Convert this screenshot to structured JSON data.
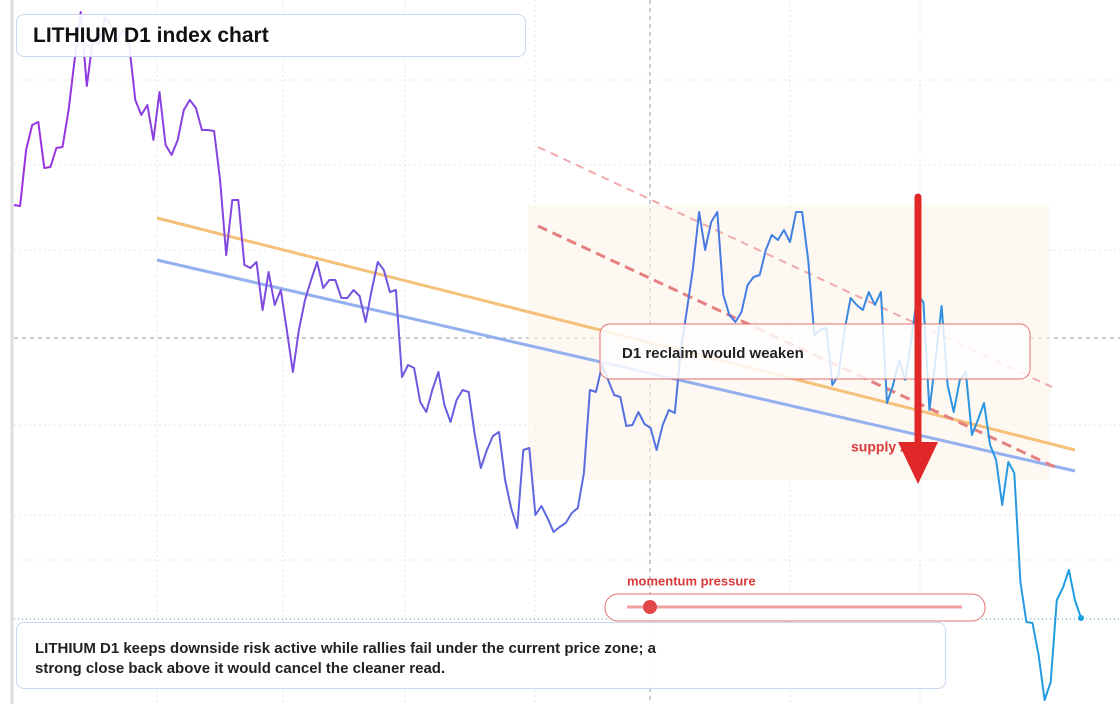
{
  "chart_data": {
    "type": "line",
    "title": "LITHIUM D1 index chart",
    "annotations": {
      "zone_note": "D1 reclaim would weaken",
      "zone_label": "supply zone",
      "meter_label": "momentum pressure",
      "summary": "LITHIUM D1 keeps downside risk active while rallies fail under the current price zone; a strong close back above it would cancel the cleaner read."
    },
    "color": "#9b30e0",
    "color_end": "#1ea0e0",
    "ylim": [
      0,
      704
    ],
    "values": [
      499,
      498,
      554,
      579,
      582,
      536,
      537,
      556,
      557,
      594,
      644,
      692,
      618,
      664,
      659,
      686,
      679,
      664,
      674,
      659,
      604,
      589,
      599,
      564,
      612,
      559,
      549,
      564,
      594,
      604,
      596,
      574,
      574,
      573,
      524,
      449,
      504,
      504,
      439,
      436,
      442,
      394,
      432,
      399,
      414,
      374,
      332,
      374,
      404,
      424,
      442,
      416,
      424,
      424,
      406,
      406,
      414,
      408,
      382,
      414,
      442,
      434,
      412,
      414,
      327,
      339,
      336,
      302,
      292,
      314,
      332,
      299,
      282,
      304,
      314,
      312,
      269,
      236,
      254,
      268,
      272,
      224,
      196,
      176,
      254,
      256,
      189,
      198,
      186,
      172,
      177,
      181,
      191,
      196,
      231,
      314,
      312,
      339,
      324,
      309,
      307,
      278,
      279,
      292,
      280,
      276,
      254,
      279,
      294,
      291,
      354,
      394,
      436,
      492,
      454,
      482,
      492,
      409,
      389,
      382,
      392,
      419,
      427,
      429,
      454,
      469,
      464,
      474,
      462,
      492,
      492,
      444,
      369,
      374,
      376,
      319,
      329,
      374,
      406,
      399,
      394,
      412,
      399,
      412,
      301,
      319,
      344,
      324,
      364,
      409,
      402,
      294,
      344,
      398,
      319,
      292,
      324,
      332,
      269,
      284,
      301,
      259,
      244,
      199,
      242,
      231,
      122,
      82,
      81,
      49,
      4,
      22,
      104,
      116,
      134,
      104,
      86
    ]
  }
}
